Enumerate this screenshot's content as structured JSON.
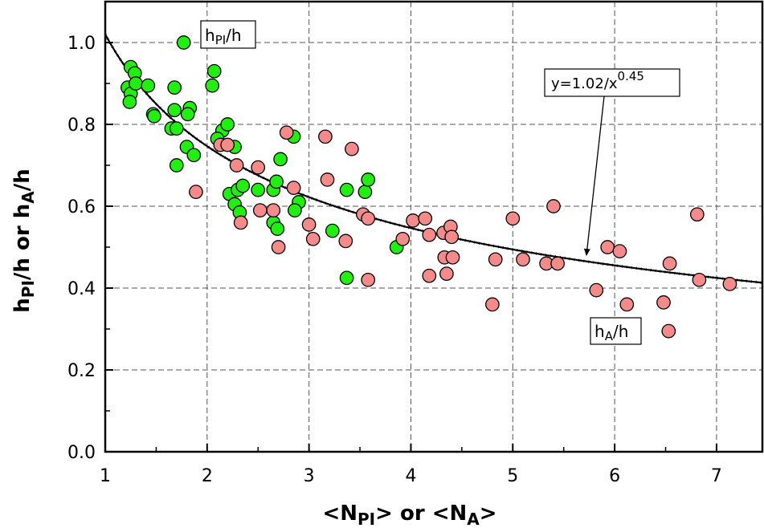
{
  "chart_data": {
    "type": "scatter",
    "xlabel": {
      "prefix": "<N",
      "sub1": "PI",
      "middle": "> or <N",
      "sub2": "A",
      "suffix": ">"
    },
    "ylabel": {
      "prefix": "h",
      "sub1": "PI",
      "middle": "/h or h",
      "sub2": "A",
      "suffix": "/h"
    },
    "xlim": [
      1,
      7.45
    ],
    "ylim": [
      0,
      1.1
    ],
    "xticks": [
      1,
      2,
      3,
      4,
      5,
      6,
      7
    ],
    "yticks": [
      0.0,
      0.2,
      0.4,
      0.6,
      0.8,
      1.0
    ],
    "ytick_labels": [
      "0.0",
      "0.2",
      "0.4",
      "0.6",
      "0.8",
      "1.0"
    ],
    "grid": true,
    "series": [
      {
        "name": "hPI/h",
        "color": "#22ee11",
        "points": [
          [
            1.77,
            1.0
          ],
          [
            1.25,
            0.94
          ],
          [
            1.29,
            0.925
          ],
          [
            1.22,
            0.89
          ],
          [
            1.25,
            0.875
          ],
          [
            1.24,
            0.855
          ],
          [
            1.3,
            0.9
          ],
          [
            1.42,
            0.895
          ],
          [
            1.47,
            0.825
          ],
          [
            1.48,
            0.82
          ],
          [
            1.68,
            0.89
          ],
          [
            1.68,
            0.835
          ],
          [
            1.83,
            0.84
          ],
          [
            1.81,
            0.825
          ],
          [
            2.07,
            0.93
          ],
          [
            2.05,
            0.895
          ],
          [
            1.65,
            0.79
          ],
          [
            1.7,
            0.79
          ],
          [
            2.15,
            0.785
          ],
          [
            2.2,
            0.8
          ],
          [
            2.1,
            0.765
          ],
          [
            2.27,
            0.745
          ],
          [
            1.8,
            0.745
          ],
          [
            1.87,
            0.725
          ],
          [
            1.7,
            0.7
          ],
          [
            2.72,
            0.715
          ],
          [
            2.85,
            0.77
          ],
          [
            2.22,
            0.63
          ],
          [
            2.27,
            0.605
          ],
          [
            2.3,
            0.64
          ],
          [
            2.35,
            0.65
          ],
          [
            2.5,
            0.64
          ],
          [
            2.65,
            0.64
          ],
          [
            2.68,
            0.66
          ],
          [
            2.32,
            0.585
          ],
          [
            2.65,
            0.56
          ],
          [
            2.69,
            0.545
          ],
          [
            2.9,
            0.61
          ],
          [
            2.86,
            0.59
          ],
          [
            3.23,
            0.54
          ],
          [
            3.37,
            0.64
          ],
          [
            3.55,
            0.635
          ],
          [
            3.58,
            0.665
          ],
          [
            3.37,
            0.425
          ],
          [
            3.86,
            0.5
          ]
        ]
      },
      {
        "name": "hA/h",
        "color": "#f58a8a",
        "points": [
          [
            2.13,
            0.75
          ],
          [
            2.2,
            0.75
          ],
          [
            1.89,
            0.635
          ],
          [
            2.29,
            0.7
          ],
          [
            2.33,
            0.56
          ],
          [
            2.5,
            0.695
          ],
          [
            2.52,
            0.59
          ],
          [
            2.65,
            0.59
          ],
          [
            2.7,
            0.5
          ],
          [
            2.78,
            0.78
          ],
          [
            2.85,
            0.645
          ],
          [
            3.0,
            0.555
          ],
          [
            3.04,
            0.52
          ],
          [
            3.16,
            0.77
          ],
          [
            3.18,
            0.665
          ],
          [
            3.36,
            0.515
          ],
          [
            3.42,
            0.74
          ],
          [
            3.53,
            0.58
          ],
          [
            3.58,
            0.57
          ],
          [
            3.58,
            0.42
          ],
          [
            3.92,
            0.52
          ],
          [
            4.02,
            0.565
          ],
          [
            4.14,
            0.57
          ],
          [
            4.18,
            0.53
          ],
          [
            4.18,
            0.43
          ],
          [
            4.32,
            0.535
          ],
          [
            4.33,
            0.475
          ],
          [
            4.35,
            0.435
          ],
          [
            4.39,
            0.55
          ],
          [
            4.4,
            0.525
          ],
          [
            4.41,
            0.475
          ],
          [
            4.8,
            0.36
          ],
          [
            4.83,
            0.47
          ],
          [
            5.0,
            0.57
          ],
          [
            5.1,
            0.47
          ],
          [
            5.33,
            0.46
          ],
          [
            5.4,
            0.6
          ],
          [
            5.44,
            0.46
          ],
          [
            5.82,
            0.395
          ],
          [
            5.93,
            0.5
          ],
          [
            6.05,
            0.49
          ],
          [
            6.12,
            0.36
          ],
          [
            6.48,
            0.365
          ],
          [
            6.53,
            0.295
          ],
          [
            6.54,
            0.46
          ],
          [
            6.81,
            0.58
          ],
          [
            6.83,
            0.42
          ],
          [
            7.13,
            0.41
          ]
        ]
      }
    ],
    "fit": {
      "a": 1.02,
      "b": 0.45,
      "label_base": "y=1.02/x",
      "label_exp": "0.45"
    },
    "annotations": {
      "pi": {
        "base": "h",
        "sub": "PI",
        "rest": "/h"
      },
      "a": {
        "base": "h",
        "sub": "A",
        "rest": "/h"
      }
    }
  }
}
